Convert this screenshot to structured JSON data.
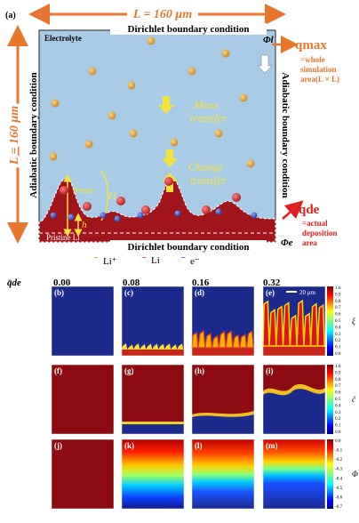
{
  "panel_a": {
    "label": "(a)",
    "width_label": "L = 160 μm",
    "height_label": "L = 160 μm",
    "top_bc": "Dirichlet boundary condition",
    "bottom_bc": "Dirichlet boundary condition",
    "left_bc": "Adiabatic boundary condition",
    "right_bc": "Adiabatic boundary condition",
    "electrolyte": "Electrolyte",
    "mass_transfer": [
      "Mass",
      "transfer"
    ],
    "charge_transfer": [
      "Charge",
      "transfer"
    ],
    "pristine": "Pristine Li",
    "phi_l": "Φl",
    "phi_e": "Φe",
    "e_field": "E",
    "q_max": "qmax",
    "q_max_desc": [
      "=whole",
      "simulation",
      "area(L × L)"
    ],
    "q_de": "qde",
    "q_de_desc": [
      "=actual",
      "deposition",
      "area"
    ],
    "h_max": "hmax",
    "h": "h",
    "H": "H",
    "legend": [
      "Li⁺",
      "Li",
      "e⁻"
    ],
    "colors": {
      "electrolyte": "#a8cbe8",
      "li_metal": "#a0141a",
      "li_ion": "#e0a23c",
      "li_atom": "#d42a2a",
      "electron": "#3556b8",
      "orange": "#e8772e",
      "red": "#e02020",
      "yellow": "#f2e23a"
    }
  },
  "grid": {
    "q_label": "q̄de",
    "columns": [
      "0.00",
      "0.08",
      "0.16",
      "0.32"
    ],
    "scale_bar": "20 μm",
    "rows": [
      {
        "labels": [
          "(b)",
          "(c)",
          "(d)",
          "(e)"
        ],
        "symbol": "ξ",
        "ticks": [
          "1.0",
          "0.9",
          "0.8",
          "0.7",
          "0.6",
          "0.5",
          "0.4",
          "0.3",
          "0.2",
          "0.1",
          "0.0"
        ]
      },
      {
        "labels": [
          "(f)",
          "(g)",
          "(h)",
          "(i)"
        ],
        "symbol": "c̃",
        "ticks": [
          "1.0",
          "0.9",
          "0.8",
          "0.7",
          "0.6",
          "0.5",
          "0.4",
          "0.3",
          "0.2",
          "0.1",
          "0.0"
        ]
      },
      {
        "labels": [
          "(j)",
          "(k)",
          "(l)",
          "(m)"
        ],
        "symbol": "Φ",
        "ticks": [
          "0.0",
          "-0.1",
          "-0.2",
          "-0.3",
          "-0.4",
          "-0.5",
          "-0.6",
          "-0.7"
        ]
      }
    ]
  }
}
